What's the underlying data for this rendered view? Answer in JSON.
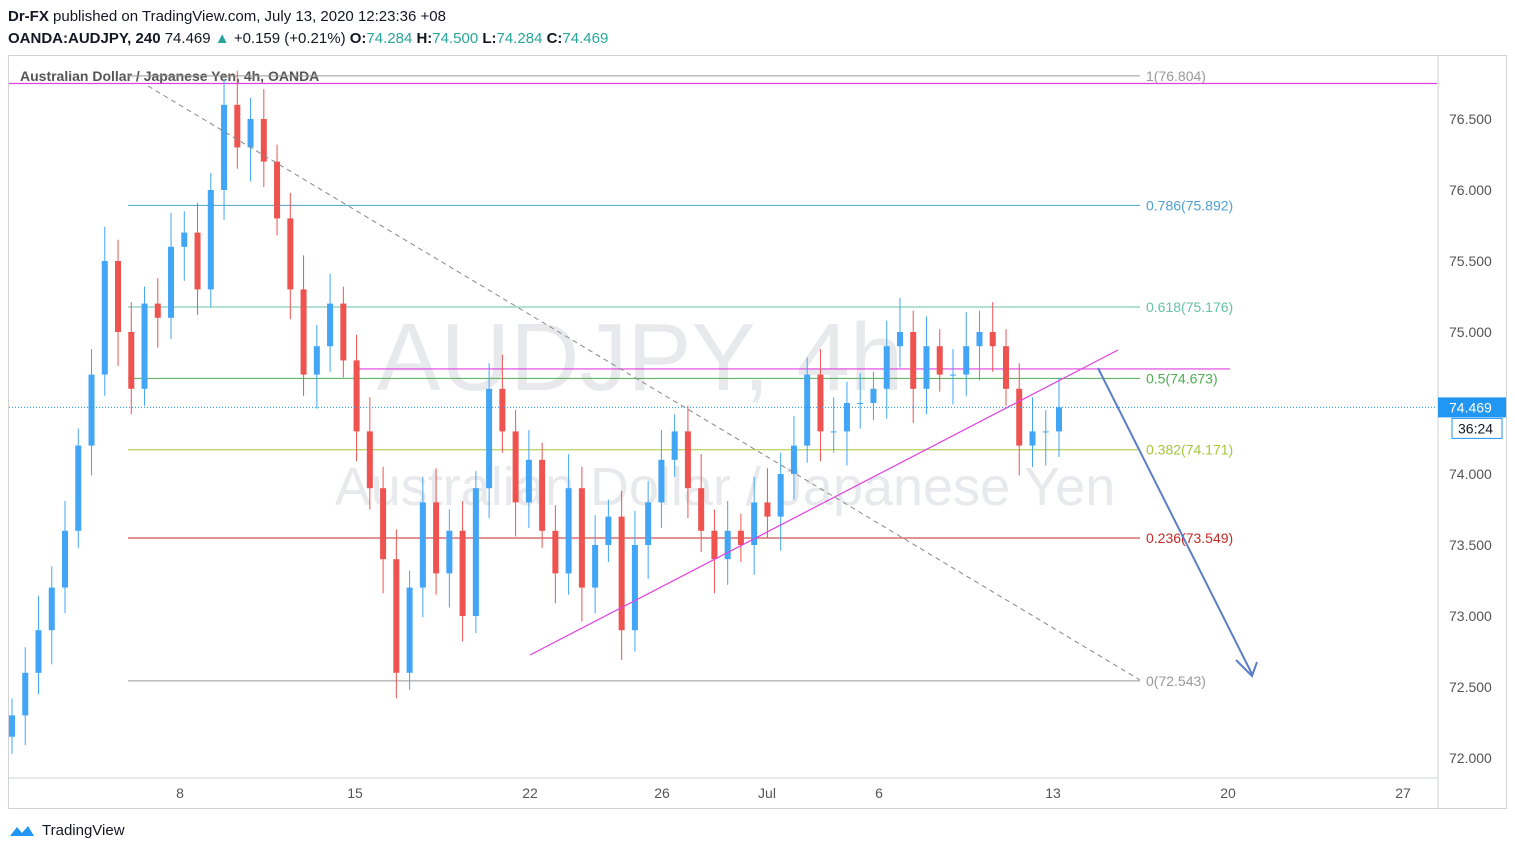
{
  "header": {
    "publisher": "Dr-FX",
    "published_text": "published on TradingView.com, July 13, 2020 12:23:36 +08",
    "symbol": "OANDA:AUDJPY, 240",
    "last": "74.469",
    "change": "+0.159 (+0.21%)",
    "o_label": "O:",
    "o_value": "74.284",
    "h_label": "H:",
    "h_value": "74.500",
    "l_label": "L:",
    "l_value": "74.284",
    "c_label": "C:",
    "c_value": "74.469"
  },
  "footer": {
    "brand": "TradingView"
  },
  "colors": {
    "up": "#42a5f5",
    "down": "#ef5350",
    "fib_1": "#999999",
    "fib_0786": "#4ea1d3",
    "fib_0618": "#66c2a5",
    "fib_05": "#4caf50",
    "fib_0382": "#a5c63b",
    "fib_0236": "#c62828",
    "fib_0": "#999999",
    "magenta": "#e040e0",
    "arrow": "#5b7fc4",
    "price_label_bg": "#2196f3"
  },
  "chart_data": {
    "type": "candlestick",
    "title": "Australian Dollar / Japanese Yen, 4h, OANDA",
    "watermark_symbol": "AUDJPY, 4h",
    "watermark_name": "Australian Dollar / Japanese Yen",
    "ylim": [
      71.9,
      76.95
    ],
    "y_ticks": [
      "76.500",
      "76.000",
      "75.500",
      "75.000",
      "74.500",
      "74.000",
      "73.500",
      "73.000",
      "72.500",
      "72.000"
    ],
    "y_tick_values": [
      76.5,
      76.0,
      75.5,
      75.0,
      74.5,
      74.0,
      73.5,
      73.0,
      72.5,
      72.0
    ],
    "x_ticks": [
      "8",
      "15",
      "22",
      "26",
      "Jul",
      "6",
      "13",
      "20",
      "27"
    ],
    "last_price": "74.469",
    "last_price_value": 74.469,
    "countdown": "36:24",
    "fib_levels": [
      {
        "label": "1(76.804)",
        "value": 76.804,
        "color_key": "fib_1"
      },
      {
        "label": "0.786(75.892)",
        "value": 75.892,
        "color_key": "fib_0786"
      },
      {
        "label": "0.618(75.176)",
        "value": 75.176,
        "color_key": "fib_0618"
      },
      {
        "label": "0.5(74.673)",
        "value": 74.673,
        "color_key": "fib_05"
      },
      {
        "label": "0.382(74.171)",
        "value": 74.171,
        "color_key": "fib_0382"
      },
      {
        "label": "0.236(73.549)",
        "value": 73.549,
        "color_key": "fib_0236"
      },
      {
        "label": "0(72.543)",
        "value": 72.543,
        "color_key": "fib_0"
      }
    ],
    "horizontal_lines": [
      76.75,
      74.74
    ],
    "candle_closes": [
      72.3,
      72.6,
      72.9,
      73.2,
      73.6,
      74.2,
      74.7,
      75.5,
      75.0,
      74.6,
      75.2,
      75.1,
      75.6,
      75.7,
      75.3,
      76.0,
      76.6,
      76.3,
      76.5,
      76.2,
      75.8,
      75.3,
      74.7,
      74.9,
      75.2,
      74.8,
      74.3,
      73.9,
      73.4,
      72.6,
      73.2,
      73.8,
      73.3,
      73.6,
      73.0,
      73.9,
      74.6,
      74.3,
      73.8,
      74.1,
      73.6,
      73.3,
      73.9,
      73.2,
      73.5,
      73.7,
      72.9,
      73.5,
      73.8,
      74.1,
      74.3,
      73.9,
      73.6,
      73.4,
      73.6,
      73.5,
      73.8,
      73.7,
      74.0,
      74.2,
      74.7,
      74.3,
      74.3,
      74.5,
      74.5,
      74.6,
      74.9,
      75.0,
      74.6,
      74.9,
      74.7,
      74.7,
      74.9,
      75.0,
      74.9,
      74.6,
      74.2,
      74.3,
      74.3,
      74.469
    ]
  }
}
